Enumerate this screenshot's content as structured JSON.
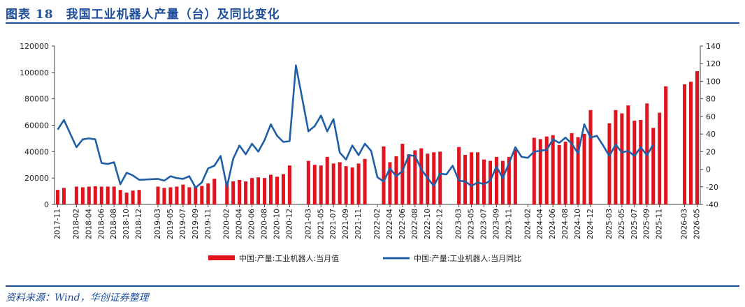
{
  "header": {
    "title": "图表 18　我国工业机器人产量（台）及同比变化"
  },
  "footer": {
    "source": "资料来源：Wind，华创证券整理"
  },
  "chart_data": {
    "type": "bar",
    "title": "图表 18　我国工业机器人产量（台）及同比变化",
    "xlabel": "",
    "ylabel": "",
    "y_left": {
      "min": 0,
      "max": 120000,
      "ticks": [
        "0",
        "20000",
        "40000",
        "60000",
        "80000",
        "100000",
        "120000"
      ]
    },
    "y_right": {
      "min": -40,
      "max": 140,
      "ticks": [
        "-40",
        "-20",
        "0",
        "20",
        "40",
        "60",
        "80",
        "100",
        "120",
        "140"
      ]
    },
    "x_tick_labels": [
      "2017-11",
      "2018-02",
      "2018-04",
      "2018-06",
      "2018-08",
      "2018-10",
      "2018-12",
      "2019-03",
      "2019-05",
      "2019-07",
      "2019-09",
      "2019-11",
      "2020-02",
      "2020-04",
      "2020-06",
      "2020-08",
      "2020-10",
      "2020-12",
      "2021-03",
      "2021-05",
      "2021-07",
      "2021-09",
      "2021-11",
      "2022-02",
      "2022-04",
      "2022-06",
      "2022-08",
      "2022-10",
      "2022-12",
      "2023-03",
      "2023-05",
      "2023-07",
      "2023-09",
      "2023-11",
      "2024-02",
      "2024-04",
      "2024-06",
      "2024-08",
      "2024-10",
      "2024-12",
      "2025-03",
      "2025-05",
      "2025-07",
      "2025-09",
      "2025-11",
      "2026-03",
      "2026-05"
    ],
    "legend_position": "bottom",
    "colors": {
      "bar": "#e0141e",
      "line": "#1f5fa8"
    },
    "series": [
      {
        "name": "中国:产量:工业机器人:当月值",
        "type": "bar",
        "axis": "left",
        "points": [
          {
            "x": "2017-11",
            "y": 11000
          },
          {
            "x": "2017-12",
            "y": 12500
          },
          {
            "x": "2018-02",
            "y": 13500
          },
          {
            "x": "2018-03",
            "y": 13000
          },
          {
            "x": "2018-04",
            "y": 13500
          },
          {
            "x": "2018-05",
            "y": 13800
          },
          {
            "x": "2018-06",
            "y": 13500
          },
          {
            "x": "2018-07",
            "y": 13500
          },
          {
            "x": "2018-08",
            "y": 13500
          },
          {
            "x": "2018-09",
            "y": 11000
          },
          {
            "x": "2018-10",
            "y": 9000
          },
          {
            "x": "2018-11",
            "y": 10500
          },
          {
            "x": "2018-12",
            "y": 11000
          },
          {
            "x": "2019-03",
            "y": 13500
          },
          {
            "x": "2019-04",
            "y": 12500
          },
          {
            "x": "2019-05",
            "y": 13000
          },
          {
            "x": "2019-06",
            "y": 13500
          },
          {
            "x": "2019-07",
            "y": 15000
          },
          {
            "x": "2019-08",
            "y": 13000
          },
          {
            "x": "2019-09",
            "y": 13500
          },
          {
            "x": "2019-10",
            "y": 14000
          },
          {
            "x": "2019-11",
            "y": 16000
          },
          {
            "x": "2019-12",
            "y": 19500
          },
          {
            "x": "2020-02",
            "y": 17000
          },
          {
            "x": "2020-03",
            "y": 17500
          },
          {
            "x": "2020-04",
            "y": 18500
          },
          {
            "x": "2020-05",
            "y": 17500
          },
          {
            "x": "2020-06",
            "y": 20000
          },
          {
            "x": "2020-07",
            "y": 20500
          },
          {
            "x": "2020-08",
            "y": 20000
          },
          {
            "x": "2020-09",
            "y": 22500
          },
          {
            "x": "2020-10",
            "y": 21000
          },
          {
            "x": "2020-11",
            "y": 23000
          },
          {
            "x": "2020-12",
            "y": 29500
          },
          {
            "x": "2021-03",
            "y": 33000
          },
          {
            "x": "2021-04",
            "y": 30000
          },
          {
            "x": "2021-05",
            "y": 29500
          },
          {
            "x": "2021-06",
            "y": 36000
          },
          {
            "x": "2021-07",
            "y": 31000
          },
          {
            "x": "2021-08",
            "y": 32000
          },
          {
            "x": "2021-09",
            "y": 29000
          },
          {
            "x": "2021-10",
            "y": 28000
          },
          {
            "x": "2021-11",
            "y": 31000
          },
          {
            "x": "2021-12",
            "y": 34500
          },
          {
            "x": "2022-03",
            "y": 44000
          },
          {
            "x": "2022-04",
            "y": 32000
          },
          {
            "x": "2022-05",
            "y": 36500
          },
          {
            "x": "2022-06",
            "y": 46000
          },
          {
            "x": "2022-07",
            "y": 38000
          },
          {
            "x": "2022-08",
            "y": 41000
          },
          {
            "x": "2022-09",
            "y": 42500
          },
          {
            "x": "2022-10",
            "y": 38500
          },
          {
            "x": "2022-11",
            "y": 39500
          },
          {
            "x": "2022-12",
            "y": 40000
          },
          {
            "x": "2023-03",
            "y": 43500
          },
          {
            "x": "2023-04",
            "y": 37500
          },
          {
            "x": "2023-05",
            "y": 39500
          },
          {
            "x": "2023-06",
            "y": 39500
          },
          {
            "x": "2023-07",
            "y": 34000
          },
          {
            "x": "2023-08",
            "y": 33000
          },
          {
            "x": "2023-09",
            "y": 36000
          },
          {
            "x": "2023-10",
            "y": 33000
          },
          {
            "x": "2023-11",
            "y": 36000
          },
          {
            "x": "2023-12",
            "y": 41500
          },
          {
            "x": "2024-03",
            "y": 50500
          },
          {
            "x": "2024-04",
            "y": 49500
          },
          {
            "x": "2024-05",
            "y": 51500
          },
          {
            "x": "2024-06",
            "y": 52500
          },
          {
            "x": "2024-07",
            "y": 45000
          },
          {
            "x": "2024-08",
            "y": 47500
          },
          {
            "x": "2024-09",
            "y": 54000
          },
          {
            "x": "2024-10",
            "y": 51000
          },
          {
            "x": "2024-11",
            "y": 53500
          },
          {
            "x": "2024-12",
            "y": 71500
          },
          {
            "x": "2025-03",
            "y": 61500
          },
          {
            "x": "2025-04",
            "y": 71500
          },
          {
            "x": "2025-05",
            "y": 69000
          },
          {
            "x": "2025-06",
            "y": 75000
          },
          {
            "x": "2025-07",
            "y": 63500
          },
          {
            "x": "2025-08",
            "y": 64000
          },
          {
            "x": "2025-09",
            "y": 76500
          },
          {
            "x": "2025-10",
            "y": 58000
          },
          {
            "x": "2025-11",
            "y": 69500
          },
          {
            "x": "2025-12",
            "y": 89500
          },
          {
            "x": "2026-03",
            "y": 91000
          },
          {
            "x": "2026-04",
            "y": 93000
          },
          {
            "x": "2026-05",
            "y": 101000
          }
        ]
      },
      {
        "name": "中国:产量:工业机器人:当月同比",
        "type": "line",
        "axis": "right",
        "points": [
          {
            "x": "2017-11",
            "y": 45
          },
          {
            "x": "2017-12",
            "y": 56
          },
          {
            "x": "2018-02",
            "y": 25
          },
          {
            "x": "2018-03",
            "y": 34
          },
          {
            "x": "2018-04",
            "y": 35
          },
          {
            "x": "2018-05",
            "y": 34
          },
          {
            "x": "2018-06",
            "y": 7
          },
          {
            "x": "2018-07",
            "y": 6
          },
          {
            "x": "2018-08",
            "y": 8
          },
          {
            "x": "2018-09",
            "y": -17
          },
          {
            "x": "2018-10",
            "y": -4
          },
          {
            "x": "2018-11",
            "y": -7
          },
          {
            "x": "2018-12",
            "y": -12
          },
          {
            "x": "2019-03",
            "y": -11
          },
          {
            "x": "2019-04",
            "y": -13
          },
          {
            "x": "2019-05",
            "y": -8
          },
          {
            "x": "2019-06",
            "y": -10
          },
          {
            "x": "2019-07",
            "y": -11
          },
          {
            "x": "2019-08",
            "y": -8
          },
          {
            "x": "2019-09",
            "y": -21
          },
          {
            "x": "2019-10",
            "y": -15
          },
          {
            "x": "2019-11",
            "y": 1
          },
          {
            "x": "2019-12",
            "y": 4
          },
          {
            "x": "2020-01",
            "y": 15
          },
          {
            "x": "2020-02",
            "y": -20
          },
          {
            "x": "2020-03",
            "y": 12
          },
          {
            "x": "2020-04",
            "y": 27
          },
          {
            "x": "2020-05",
            "y": 17
          },
          {
            "x": "2020-06",
            "y": 29
          },
          {
            "x": "2020-07",
            "y": 20
          },
          {
            "x": "2020-08",
            "y": 33
          },
          {
            "x": "2020-09",
            "y": 51
          },
          {
            "x": "2020-10",
            "y": 38
          },
          {
            "x": "2020-11",
            "y": 31
          },
          {
            "x": "2020-12",
            "y": 32
          },
          {
            "x": "2021-01",
            "y": 118
          },
          {
            "x": "2021-02",
            "y": 81
          },
          {
            "x": "2021-03",
            "y": 43
          },
          {
            "x": "2021-04",
            "y": 49
          },
          {
            "x": "2021-05",
            "y": 61
          },
          {
            "x": "2021-06",
            "y": 43
          },
          {
            "x": "2021-07",
            "y": 57
          },
          {
            "x": "2021-08",
            "y": 19
          },
          {
            "x": "2021-09",
            "y": 11
          },
          {
            "x": "2021-10",
            "y": 27
          },
          {
            "x": "2021-11",
            "y": 16
          },
          {
            "x": "2021-12",
            "y": 29
          },
          {
            "x": "2022-01",
            "y": 21
          },
          {
            "x": "2022-02",
            "y": -9
          },
          {
            "x": "2022-03",
            "y": -14
          },
          {
            "x": "2022-04",
            "y": 1
          },
          {
            "x": "2022-05",
            "y": -8
          },
          {
            "x": "2022-06",
            "y": -2
          },
          {
            "x": "2022-07",
            "y": 16
          },
          {
            "x": "2022-08",
            "y": 15
          },
          {
            "x": "2022-09",
            "y": 0
          },
          {
            "x": "2022-10",
            "y": -10
          },
          {
            "x": "2022-11",
            "y": -19
          },
          {
            "x": "2022-12",
            "y": -5
          },
          {
            "x": "2023-01",
            "y": -6
          },
          {
            "x": "2023-02",
            "y": 4
          },
          {
            "x": "2023-03",
            "y": -13
          },
          {
            "x": "2023-04",
            "y": -14
          },
          {
            "x": "2023-05",
            "y": -19
          },
          {
            "x": "2023-06",
            "y": -15
          },
          {
            "x": "2023-07",
            "y": -17
          },
          {
            "x": "2023-08",
            "y": -13
          },
          {
            "x": "2023-09",
            "y": 3
          },
          {
            "x": "2023-10",
            "y": -10
          },
          {
            "x": "2023-11",
            "y": 7
          },
          {
            "x": "2023-12",
            "y": 25
          },
          {
            "x": "2024-01",
            "y": 14
          },
          {
            "x": "2024-02",
            "y": 13
          },
          {
            "x": "2024-03",
            "y": 20
          },
          {
            "x": "2024-04",
            "y": 21
          },
          {
            "x": "2024-05",
            "y": 22
          },
          {
            "x": "2024-06",
            "y": 34
          },
          {
            "x": "2024-07",
            "y": 30
          },
          {
            "x": "2024-08",
            "y": 36
          },
          {
            "x": "2024-09",
            "y": 29
          },
          {
            "x": "2024-10",
            "y": 18
          },
          {
            "x": "2024-11",
            "y": 51
          },
          {
            "x": "2024-12",
            "y": 36
          },
          {
            "x": "2025-01",
            "y": 38
          },
          {
            "x": "2025-02",
            "y": 27
          },
          {
            "x": "2025-03",
            "y": 15
          },
          {
            "x": "2025-04",
            "y": 28
          },
          {
            "x": "2025-05",
            "y": 19
          },
          {
            "x": "2025-06",
            "y": 21
          },
          {
            "x": "2025-07",
            "y": 15
          },
          {
            "x": "2025-08",
            "y": 25
          },
          {
            "x": "2025-09",
            "y": 16
          },
          {
            "x": "2025-10",
            "y": 28
          }
        ]
      }
    ]
  }
}
